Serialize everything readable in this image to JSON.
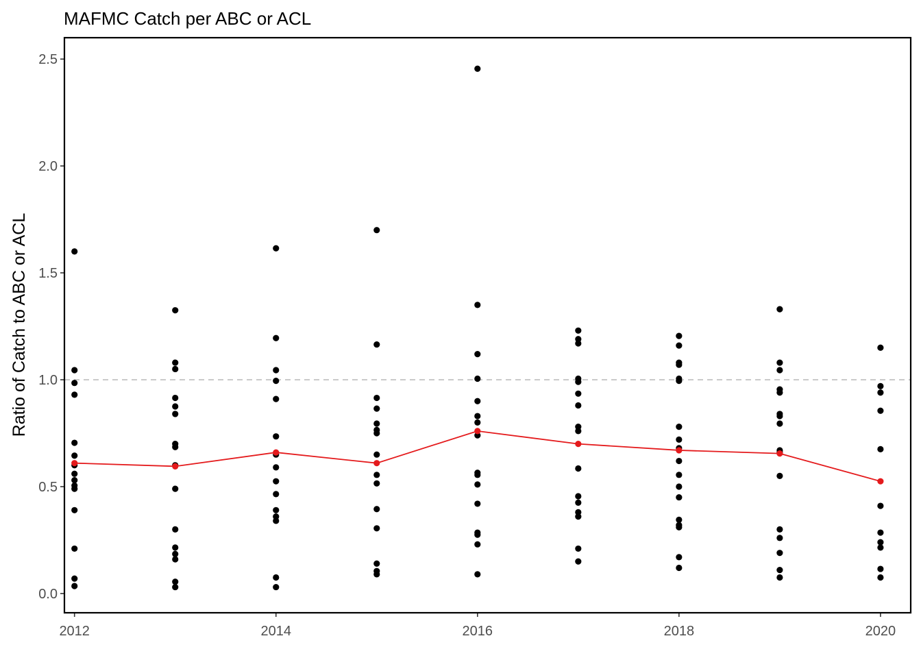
{
  "chart_data": {
    "type": "scatter",
    "title": "MAFMC Catch per ABC or ACL",
    "xlabel": "",
    "ylabel": "Ratio of Catch to ABC or ACL",
    "xlim": [
      2011.9,
      2020.3
    ],
    "ylim": [
      -0.09,
      2.6
    ],
    "x_ticks": [
      2012,
      2014,
      2016,
      2018,
      2020
    ],
    "y_ticks": [
      0.0,
      0.5,
      1.0,
      1.5,
      2.0,
      2.5
    ],
    "x_tick_labels": [
      "2012",
      "2014",
      "2016",
      "2018",
      "2020"
    ],
    "y_tick_labels": [
      "0.0",
      "0.5",
      "1.0",
      "1.5",
      "2.0",
      "2.5"
    ],
    "reference_line": {
      "y": 1.0,
      "style": "dashed",
      "color": "#bebebe"
    },
    "grid": false,
    "colors": {
      "points": "#000000",
      "mean_line": "#e41a1c",
      "frame": "#000000"
    },
    "series": [
      {
        "kind": "points",
        "points": [
          [
            2012,
            1.6
          ],
          [
            2012,
            1.045
          ],
          [
            2012,
            0.985
          ],
          [
            2012,
            0.93
          ],
          [
            2012,
            0.705
          ],
          [
            2012,
            0.645
          ],
          [
            2012,
            0.6
          ],
          [
            2012,
            0.56
          ],
          [
            2012,
            0.53
          ],
          [
            2012,
            0.505
          ],
          [
            2012,
            0.49
          ],
          [
            2012,
            0.39
          ],
          [
            2012,
            0.21
          ],
          [
            2012,
            0.07
          ],
          [
            2012,
            0.035
          ],
          [
            2013,
            1.325
          ],
          [
            2013,
            1.08
          ],
          [
            2013,
            1.05
          ],
          [
            2013,
            0.915
          ],
          [
            2013,
            0.875
          ],
          [
            2013,
            0.84
          ],
          [
            2013,
            0.7
          ],
          [
            2013,
            0.685
          ],
          [
            2013,
            0.6
          ],
          [
            2013,
            0.49
          ],
          [
            2013,
            0.3
          ],
          [
            2013,
            0.215
          ],
          [
            2013,
            0.185
          ],
          [
            2013,
            0.16
          ],
          [
            2013,
            0.055
          ],
          [
            2013,
            0.03
          ],
          [
            2014,
            1.615
          ],
          [
            2014,
            1.195
          ],
          [
            2014,
            1.045
          ],
          [
            2014,
            0.995
          ],
          [
            2014,
            0.91
          ],
          [
            2014,
            0.735
          ],
          [
            2014,
            0.65
          ],
          [
            2014,
            0.59
          ],
          [
            2014,
            0.525
          ],
          [
            2014,
            0.465
          ],
          [
            2014,
            0.39
          ],
          [
            2014,
            0.36
          ],
          [
            2014,
            0.34
          ],
          [
            2014,
            0.075
          ],
          [
            2014,
            0.03
          ],
          [
            2015,
            1.7
          ],
          [
            2015,
            1.165
          ],
          [
            2015,
            0.915
          ],
          [
            2015,
            0.865
          ],
          [
            2015,
            0.795
          ],
          [
            2015,
            0.765
          ],
          [
            2015,
            0.75
          ],
          [
            2015,
            0.65
          ],
          [
            2015,
            0.555
          ],
          [
            2015,
            0.515
          ],
          [
            2015,
            0.395
          ],
          [
            2015,
            0.305
          ],
          [
            2015,
            0.14
          ],
          [
            2015,
            0.105
          ],
          [
            2015,
            0.09
          ],
          [
            2016,
            2.455
          ],
          [
            2016,
            1.35
          ],
          [
            2016,
            1.12
          ],
          [
            2016,
            1.005
          ],
          [
            2016,
            0.9
          ],
          [
            2016,
            0.83
          ],
          [
            2016,
            0.8
          ],
          [
            2016,
            0.74
          ],
          [
            2016,
            0.565
          ],
          [
            2016,
            0.555
          ],
          [
            2016,
            0.51
          ],
          [
            2016,
            0.42
          ],
          [
            2016,
            0.285
          ],
          [
            2016,
            0.275
          ],
          [
            2016,
            0.23
          ],
          [
            2016,
            0.09
          ],
          [
            2017,
            1.23
          ],
          [
            2017,
            1.19
          ],
          [
            2017,
            1.17
          ],
          [
            2017,
            1.005
          ],
          [
            2017,
            0.99
          ],
          [
            2017,
            0.935
          ],
          [
            2017,
            0.88
          ],
          [
            2017,
            0.78
          ],
          [
            2017,
            0.76
          ],
          [
            2017,
            0.585
          ],
          [
            2017,
            0.455
          ],
          [
            2017,
            0.425
          ],
          [
            2017,
            0.38
          ],
          [
            2017,
            0.36
          ],
          [
            2017,
            0.21
          ],
          [
            2017,
            0.15
          ],
          [
            2018,
            1.205
          ],
          [
            2018,
            1.16
          ],
          [
            2018,
            1.08
          ],
          [
            2018,
            1.07
          ],
          [
            2018,
            1.005
          ],
          [
            2018,
            0.995
          ],
          [
            2018,
            0.78
          ],
          [
            2018,
            0.72
          ],
          [
            2018,
            0.68
          ],
          [
            2018,
            0.62
          ],
          [
            2018,
            0.555
          ],
          [
            2018,
            0.5
          ],
          [
            2018,
            0.45
          ],
          [
            2018,
            0.345
          ],
          [
            2018,
            0.32
          ],
          [
            2018,
            0.31
          ],
          [
            2018,
            0.17
          ],
          [
            2018,
            0.12
          ],
          [
            2019,
            1.33
          ],
          [
            2019,
            1.08
          ],
          [
            2019,
            1.045
          ],
          [
            2019,
            0.955
          ],
          [
            2019,
            0.94
          ],
          [
            2019,
            0.84
          ],
          [
            2019,
            0.83
          ],
          [
            2019,
            0.795
          ],
          [
            2019,
            0.67
          ],
          [
            2019,
            0.66
          ],
          [
            2019,
            0.55
          ],
          [
            2019,
            0.3
          ],
          [
            2019,
            0.26
          ],
          [
            2019,
            0.19
          ],
          [
            2019,
            0.11
          ],
          [
            2019,
            0.075
          ],
          [
            2020,
            1.15
          ],
          [
            2020,
            0.97
          ],
          [
            2020,
            0.94
          ],
          [
            2020,
            0.855
          ],
          [
            2020,
            0.675
          ],
          [
            2020,
            0.41
          ],
          [
            2020,
            0.285
          ],
          [
            2020,
            0.24
          ],
          [
            2020,
            0.215
          ],
          [
            2020,
            0.115
          ],
          [
            2020,
            0.075
          ]
        ]
      },
      {
        "kind": "mean-line",
        "x": [
          2012,
          2013,
          2014,
          2015,
          2016,
          2017,
          2018,
          2019,
          2020
        ],
        "y": [
          0.61,
          0.595,
          0.66,
          0.61,
          0.76,
          0.7,
          0.67,
          0.655,
          0.525
        ]
      }
    ]
  }
}
